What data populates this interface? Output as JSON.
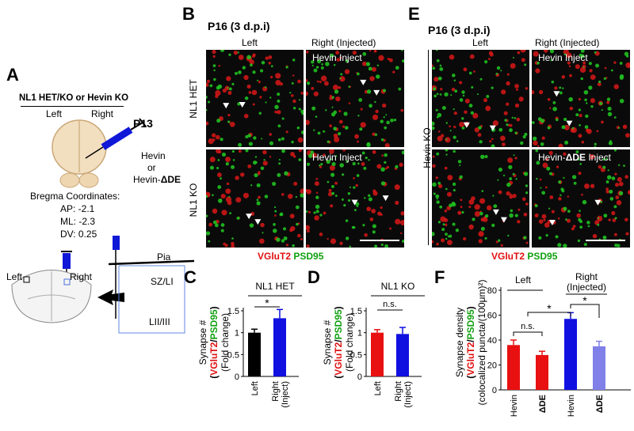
{
  "panel_labels": {
    "a": "A",
    "b": "B",
    "c": "C",
    "d": "D",
    "e": "E",
    "f": "F"
  },
  "panel_a": {
    "title": "NL1 HET/KO or Hevin KO",
    "left": "Left",
    "right": "Right",
    "timepoint": "P13",
    "inject_line1": "Hevin",
    "inject_line2": "or",
    "inject_line3_prefix": "Hevin-",
    "inject_line3_suffix": "ΔDE",
    "bregma_title": "Bregma Coordinates:",
    "ap": "AP: -2.1",
    "ml": "ML: -2.3",
    "dv": "DV: 0.25",
    "section_left": "Left",
    "section_right": "Right",
    "pia": "Pia",
    "sz": "SZ/LI",
    "lii": "LII/III"
  },
  "panel_b": {
    "title": "P16 (3 d.p.i)",
    "col_left": "Left",
    "col_right": "Right (Injected)",
    "row1": "NL1 HET",
    "row2": "NL1 KO",
    "inject1": "Hevin Inject",
    "inject2": "Hevin Inject",
    "legend_red": "VGluT2",
    "legend_green": "PSD95"
  },
  "panel_e": {
    "title": "P16 (3 d.p.i)",
    "col_left": "Left",
    "col_right": "Right (Injected)",
    "row_label": "Hevin KO",
    "inject1": "Hevin Inject",
    "inject2_prefix": "Hevin-",
    "inject2_bold": "ΔDE",
    "inject2_suffix": " Inject",
    "legend_red": "VGluT2",
    "legend_green": "PSD95"
  },
  "axis_text": {
    "syn_prefix": "Synapse #",
    "open_paren": "(",
    "red_word": "VGluT2",
    "slash": "/",
    "green_word": "PSD95",
    "close_paren": ")",
    "fold": "(Fold change)",
    "density": "Synapse density",
    "coloc_open": "(",
    "coloc": "colocalized puncta/(100μm)²",
    "coloc_close": ")"
  },
  "chart_data": [
    {
      "panel": "C",
      "type": "bar",
      "title": "NL1 HET",
      "categories": [
        "Left",
        "Right (Inject)"
      ],
      "values": [
        1.0,
        1.33
      ],
      "errors": [
        0.08,
        0.2
      ],
      "colors": [
        "#000000",
        "#1010e0"
      ],
      "ylim": [
        0,
        1.5
      ],
      "yticks": [
        "0",
        "0.5",
        "1",
        "1.5"
      ],
      "ylabel": "Synapse # (VGluT2/PSD95) (Fold change)",
      "significance": "*"
    },
    {
      "panel": "D",
      "type": "bar",
      "title": "NL1 KO",
      "categories": [
        "Left",
        "Right (Inject)"
      ],
      "values": [
        1.0,
        0.97
      ],
      "errors": [
        0.07,
        0.15
      ],
      "colors": [
        "#e81010",
        "#1010e0"
      ],
      "ylim": [
        0,
        1.5
      ],
      "yticks": [
        "0",
        "0.5",
        "1",
        "1.5"
      ],
      "ylabel": "Synapse # (VGluT2/PSD95) (Fold change)",
      "significance": "n.s."
    },
    {
      "panel": "F",
      "type": "bar",
      "group_labels": [
        "Left",
        "Right (Injected)"
      ],
      "categories": [
        "Hevin",
        "ΔDE",
        "Hevin",
        "ΔDE"
      ],
      "values": [
        36,
        28,
        57,
        35
      ],
      "errors": [
        4,
        3,
        5,
        4
      ],
      "colors": [
        "#e81010",
        "#e81010",
        "#1010e0",
        "#8080e8"
      ],
      "ylim": [
        0,
        80
      ],
      "yticks": [
        "0",
        "20",
        "40",
        "60",
        "80"
      ],
      "ylabel": "Synapse density (VGluT2/PSD95) (colocalized puncta/(100μm)²)",
      "significance": [
        "n.s.",
        "*",
        "*"
      ]
    }
  ]
}
